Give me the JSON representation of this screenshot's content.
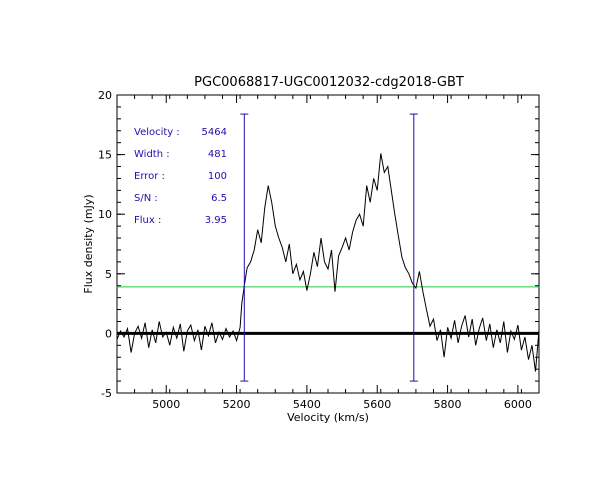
{
  "chart_data": {
    "type": "line",
    "title": "PGC0068817-UGC0012032-cdg2018-GBT",
    "xlabel": "Velocity (km/s)",
    "ylabel": "Flux density (mJy)",
    "xlim": [
      4860,
      6060
    ],
    "ylim": [
      -5,
      20
    ],
    "xticks": [
      5000,
      5200,
      5400,
      5600,
      5800,
      6000
    ],
    "yticks": [
      -5,
      0,
      5,
      10,
      15,
      20
    ],
    "grid": false,
    "baseline": 0,
    "flux_level": 3.9,
    "markers": [
      {
        "x": 5222,
        "y_range": [
          -4.0,
          18.4
        ],
        "color": "#2d0aa8"
      },
      {
        "x": 5704,
        "y_range": [
          -4.0,
          18.4
        ],
        "color": "#2d0aa8"
      }
    ],
    "colors": {
      "spectrum": "#000000",
      "flux_line": "#22cc44",
      "markers": "#2d0aa8",
      "annotations": "#2d0aa8"
    },
    "annotations": [
      {
        "label": "Velocity :",
        "value": "5464"
      },
      {
        "label": "Width :",
        "value": "481"
      },
      {
        "label": "Error :",
        "value": "100"
      },
      {
        "label": "S/N :",
        "value": "6.5"
      },
      {
        "label": "Flux :",
        "value": "3.95"
      }
    ],
    "series": [
      {
        "points": [
          [
            4860,
            -0.5
          ],
          [
            4870,
            0.2
          ],
          [
            4880,
            -0.3
          ],
          [
            4890,
            0.4
          ],
          [
            4900,
            -1.6
          ],
          [
            4910,
            0.0
          ],
          [
            4920,
            0.6
          ],
          [
            4930,
            -0.4
          ],
          [
            4940,
            0.9
          ],
          [
            4950,
            -1.2
          ],
          [
            4960,
            0.3
          ],
          [
            4970,
            -0.8
          ],
          [
            4980,
            1.0
          ],
          [
            4990,
            -0.3
          ],
          [
            5000,
            0.1
          ],
          [
            5010,
            -1.0
          ],
          [
            5020,
            0.5
          ],
          [
            5030,
            -0.4
          ],
          [
            5040,
            0.8
          ],
          [
            5050,
            -1.5
          ],
          [
            5060,
            0.2
          ],
          [
            5070,
            0.7
          ],
          [
            5080,
            -0.6
          ],
          [
            5090,
            0.3
          ],
          [
            5100,
            -1.4
          ],
          [
            5110,
            0.6
          ],
          [
            5120,
            -0.2
          ],
          [
            5130,
            0.9
          ],
          [
            5140,
            -0.8
          ],
          [
            5150,
            0.1
          ],
          [
            5160,
            -0.5
          ],
          [
            5170,
            0.4
          ],
          [
            5180,
            -0.3
          ],
          [
            5190,
            0.2
          ],
          [
            5200,
            -0.6
          ],
          [
            5210,
            0.5
          ],
          [
            5215,
            2.5
          ],
          [
            5222,
            4.0
          ],
          [
            5230,
            5.5
          ],
          [
            5240,
            6.0
          ],
          [
            5250,
            7.0
          ],
          [
            5260,
            8.7
          ],
          [
            5270,
            7.6
          ],
          [
            5280,
            10.5
          ],
          [
            5290,
            12.4
          ],
          [
            5300,
            11.0
          ],
          [
            5310,
            9.0
          ],
          [
            5320,
            8.0
          ],
          [
            5330,
            7.2
          ],
          [
            5340,
            6.0
          ],
          [
            5350,
            7.5
          ],
          [
            5360,
            5.0
          ],
          [
            5370,
            5.8
          ],
          [
            5380,
            4.5
          ],
          [
            5390,
            5.2
          ],
          [
            5400,
            3.6
          ],
          [
            5410,
            5.0
          ],
          [
            5420,
            6.8
          ],
          [
            5430,
            5.6
          ],
          [
            5440,
            8.0
          ],
          [
            5450,
            6.0
          ],
          [
            5460,
            5.4
          ],
          [
            5470,
            7.0
          ],
          [
            5480,
            3.5
          ],
          [
            5490,
            6.5
          ],
          [
            5500,
            7.2
          ],
          [
            5510,
            8.0
          ],
          [
            5520,
            7.0
          ],
          [
            5530,
            8.5
          ],
          [
            5540,
            9.5
          ],
          [
            5550,
            10.0
          ],
          [
            5560,
            9.0
          ],
          [
            5570,
            12.4
          ],
          [
            5580,
            11.0
          ],
          [
            5590,
            13.0
          ],
          [
            5600,
            12.0
          ],
          [
            5610,
            15.1
          ],
          [
            5620,
            13.5
          ],
          [
            5630,
            14.0
          ],
          [
            5640,
            12.0
          ],
          [
            5650,
            10.0
          ],
          [
            5660,
            8.2
          ],
          [
            5670,
            6.4
          ],
          [
            5680,
            5.5
          ],
          [
            5690,
            5.0
          ],
          [
            5700,
            4.2
          ],
          [
            5710,
            3.8
          ],
          [
            5720,
            5.2
          ],
          [
            5730,
            3.5
          ],
          [
            5740,
            2.0
          ],
          [
            5750,
            0.6
          ],
          [
            5760,
            1.2
          ],
          [
            5770,
            -0.6
          ],
          [
            5780,
            0.3
          ],
          [
            5790,
            -2.0
          ],
          [
            5800,
            0.5
          ],
          [
            5810,
            -0.4
          ],
          [
            5820,
            1.1
          ],
          [
            5830,
            -0.8
          ],
          [
            5840,
            0.6
          ],
          [
            5850,
            1.5
          ],
          [
            5860,
            -0.3
          ],
          [
            5870,
            1.2
          ],
          [
            5880,
            -1.0
          ],
          [
            5890,
            0.4
          ],
          [
            5900,
            1.3
          ],
          [
            5910,
            -0.6
          ],
          [
            5920,
            0.8
          ],
          [
            5930,
            -1.2
          ],
          [
            5940,
            0.3
          ],
          [
            5950,
            -0.8
          ],
          [
            5960,
            1.0
          ],
          [
            5970,
            -1.6
          ],
          [
            5980,
            0.2
          ],
          [
            5990,
            -0.5
          ],
          [
            6000,
            0.7
          ],
          [
            6010,
            -1.4
          ],
          [
            6020,
            -0.3
          ],
          [
            6030,
            -2.2
          ],
          [
            6040,
            -1.0
          ],
          [
            6050,
            -3.2
          ],
          [
            6055,
            -1.5
          ],
          [
            6060,
            0.3
          ]
        ]
      }
    ]
  }
}
